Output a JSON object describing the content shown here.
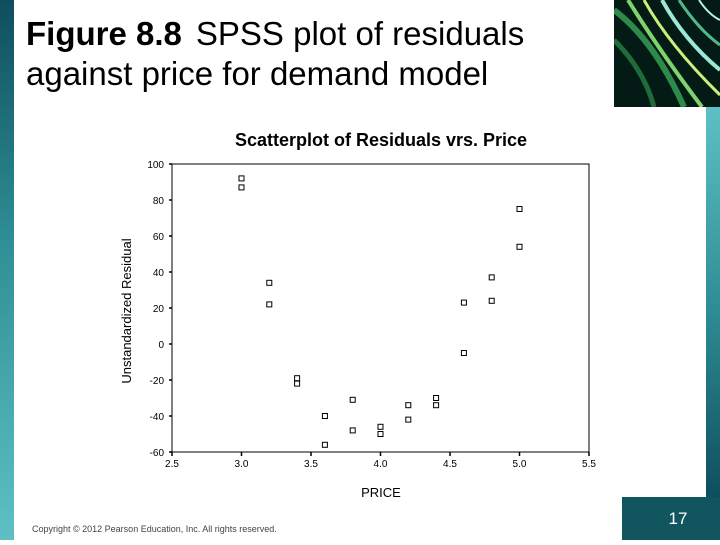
{
  "slide": {
    "figure_label": "Figure 8.8",
    "title_text": "SPSS plot of residuals",
    "title_line2": "against price for demand model",
    "copyright": "Copyright © 2012 Pearson Education, Inc. All rights reserved.",
    "page_number": "17"
  },
  "chart_data": {
    "type": "scatter",
    "title": "Scatterplot of Residuals vrs. Price",
    "xlabel": "PRICE",
    "ylabel": "Unstandardized Residual",
    "xlim": [
      2.5,
      5.5
    ],
    "ylim": [
      -60,
      100
    ],
    "x_ticks": [
      2.5,
      3.0,
      3.5,
      4.0,
      4.5,
      5.0,
      5.5
    ],
    "x_tick_labels": [
      "2.5",
      "3.0",
      "3.5",
      "4.0",
      "4.5",
      "5.0",
      "5.5"
    ],
    "y_ticks": [
      100,
      80,
      60,
      40,
      20,
      0,
      -20,
      -40,
      -60
    ],
    "y_tick_labels": [
      "100",
      "80",
      "60",
      "40",
      "20",
      "0",
      "-20",
      "-40",
      "-60"
    ],
    "grid": false,
    "marker": "hollow-square",
    "points": [
      {
        "x": 3.0,
        "y": 92
      },
      {
        "x": 3.0,
        "y": 87
      },
      {
        "x": 3.2,
        "y": 34
      },
      {
        "x": 3.2,
        "y": 22
      },
      {
        "x": 3.4,
        "y": -19
      },
      {
        "x": 3.4,
        "y": -22
      },
      {
        "x": 3.6,
        "y": -40
      },
      {
        "x": 3.6,
        "y": -56
      },
      {
        "x": 3.8,
        "y": -31
      },
      {
        "x": 3.8,
        "y": -48
      },
      {
        "x": 4.0,
        "y": -46
      },
      {
        "x": 4.0,
        "y": -50
      },
      {
        "x": 4.2,
        "y": -34
      },
      {
        "x": 4.2,
        "y": -42
      },
      {
        "x": 4.4,
        "y": -30
      },
      {
        "x": 4.4,
        "y": -34
      },
      {
        "x": 4.6,
        "y": 23
      },
      {
        "x": 4.6,
        "y": -5
      },
      {
        "x": 4.8,
        "y": 37
      },
      {
        "x": 4.8,
        "y": 24
      },
      {
        "x": 5.0,
        "y": 75
      },
      {
        "x": 5.0,
        "y": 54
      }
    ]
  }
}
